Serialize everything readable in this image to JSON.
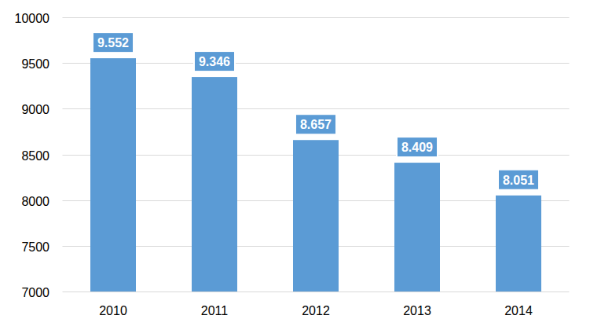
{
  "chart_data": {
    "type": "bar",
    "categories": [
      "2010",
      "2011",
      "2012",
      "2013",
      "2014"
    ],
    "values": [
      9552,
      9346,
      8657,
      8409,
      8051
    ],
    "value_labels": [
      "9.552",
      "9.346",
      "8.657",
      "8.409",
      "8.051"
    ],
    "color": "#5b9bd5",
    "ylim": [
      7000,
      10000
    ],
    "yticks": [
      7000,
      7500,
      8000,
      8500,
      9000,
      9500,
      10000
    ],
    "grid": true,
    "data_labels": true
  }
}
